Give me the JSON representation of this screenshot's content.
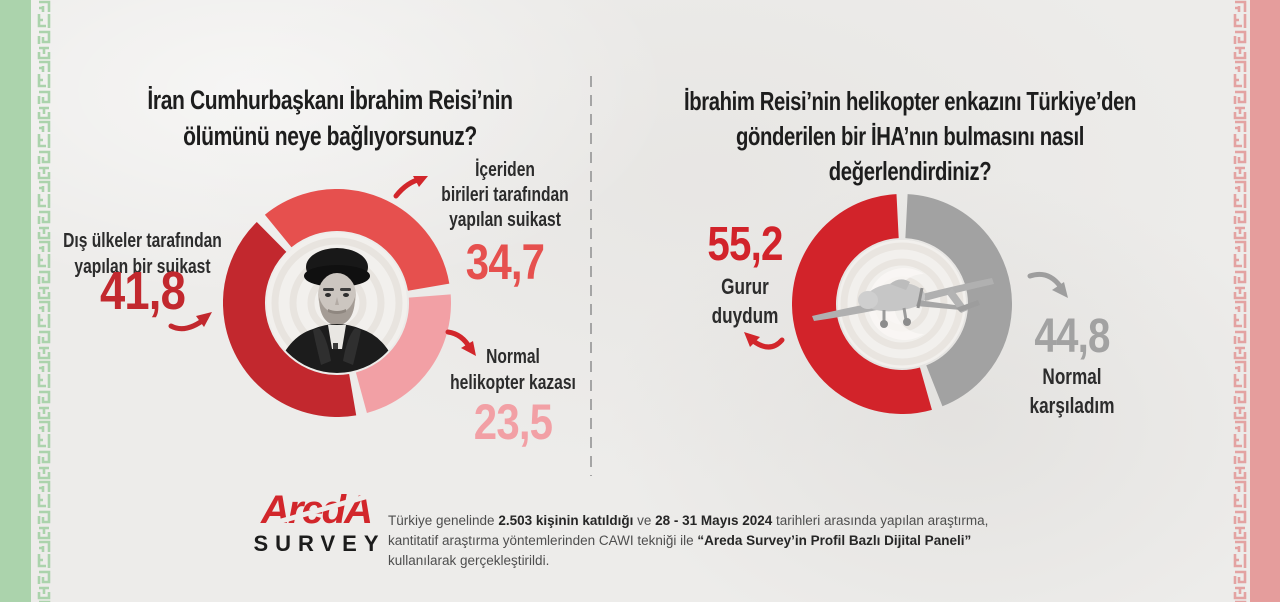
{
  "background_color": "#edecea",
  "theme": {
    "green_border": "#abd3ac",
    "pink_border": "#e59d9c",
    "divider_gray": "#a5a5a5"
  },
  "left_panel": {
    "title_line1": "İran Cumhurbaşkanı İbrahim Reisi’nin",
    "title_line2": "ölümünü neye bağlıyorsunuz?",
    "labels": {
      "foreign": {
        "line1": "Dış ülkeler tarafından",
        "line2": "yapılan bir suikast"
      },
      "insider": {
        "line1": "İçeriden",
        "line2": "birileri tarafından",
        "line3": "yapılan suikast"
      },
      "accident": {
        "line1": "Normal",
        "line2": "helikopter kazası"
      }
    }
  },
  "right_panel": {
    "title_line1": "İbrahim Reisi’nin helikopter enkazını Türkiye’den",
    "title_line2": "gönderilen bir İHA’nın bulmasını nasıl değerlendirdiniz?",
    "labels": {
      "proud": {
        "line1": "Gurur",
        "line2": "duydum"
      },
      "normal": {
        "line1": "Normal",
        "line2": "karşıladım"
      }
    }
  },
  "footer": {
    "logo_line1": "AredA",
    "logo_line2": "SURVEY",
    "segments": [
      {
        "t": "Türkiye genelinde ",
        "b": false
      },
      {
        "t": "2.503 kişinin katıldığı",
        "b": true
      },
      {
        "t": " ve ",
        "b": false
      },
      {
        "t": "28 - 31 Mayıs 2024",
        "b": true
      },
      {
        "t": " tarihleri arasında yapılan araştırma, kantitatif araştırma yöntemlerinden CAWI tekniği ile ",
        "b": false
      },
      {
        "t": "“Areda Survey’in Profil Bazlı Dijital Paneli”",
        "b": true
      },
      {
        "t": " kullanılarak gerçekleştirildi.",
        "b": false
      }
    ]
  },
  "chart_data": [
    {
      "type": "pie",
      "subtype": "donut",
      "title": "İran Cumhurbaşkanı İbrahim Reisi’nin ölümünü neye bağlıyorsunuz?",
      "categories": [
        "Dış ülkeler tarafından yapılan bir suikast",
        "İçeriden birileri tarafından yapılan suikast",
        "Normal helikopter kazası"
      ],
      "values": [
        41.8,
        34.7,
        23.5
      ],
      "display_values": [
        "41,8",
        "34,7",
        "23,5"
      ],
      "colors": [
        "#c2282e",
        "#e6504e",
        "#f2a0a5"
      ],
      "center_image": "portrait of Ibrahim Reisi (black & white)",
      "legend_position": "around-chart"
    },
    {
      "type": "pie",
      "subtype": "donut",
      "title": "İbrahim Reisi’nin helikopter enkazını Türkiye’den gönderilen bir İHA’nın bulmasını nasıl değerlendirdiniz?",
      "categories": [
        "Gurur duydum",
        "Normal karşıladım"
      ],
      "values": [
        55.2,
        44.8
      ],
      "display_values": [
        "55,2",
        "44,8"
      ],
      "colors": [
        "#d2232a",
        "#a2a2a2"
      ],
      "center_image": "Bayraktar TB2 drone (grayscale)",
      "legend_position": "around-chart"
    }
  ]
}
